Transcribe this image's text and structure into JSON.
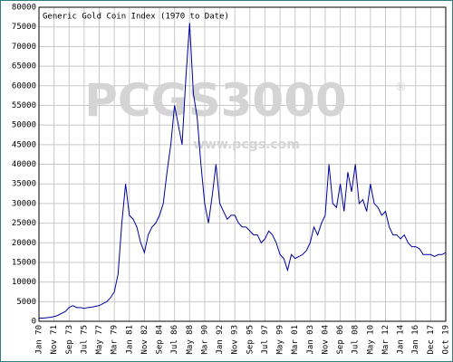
{
  "chart_data": {
    "type": "line",
    "title": "Generic Gold Coin Index (1970 to Date)",
    "watermark": "PCGS3000",
    "watermark_mark": "®",
    "watermark_url": "www.pcgs.com",
    "categories": [
      "Jan 70",
      null,
      null,
      null,
      "Nov 71",
      null,
      null,
      null,
      "Sep 73",
      null,
      null,
      null,
      "Jul 75",
      null,
      null,
      null,
      "May 77",
      null,
      null,
      null,
      "Mar 79",
      null,
      null,
      null,
      "Jan 81",
      null,
      null,
      null,
      "Nov 82",
      null,
      null,
      null,
      "Sep 84",
      null,
      null,
      null,
      "Jul 86",
      null,
      null,
      null,
      "May 88",
      null,
      null,
      null,
      "Mar 90",
      null,
      null,
      null,
      "Jan 92",
      null,
      null,
      null,
      "Nov 93",
      null,
      null,
      null,
      "Sep 95",
      null,
      null,
      null,
      "Jul 97",
      null,
      null,
      null,
      "May 99",
      null,
      null,
      null,
      "Mar 01",
      null,
      null,
      null,
      "Jan 03",
      null,
      null,
      null,
      "Nov 04",
      null,
      null,
      null,
      "Sep 06",
      null,
      null,
      null,
      "Jul 08",
      null,
      null,
      null,
      "May 10",
      null,
      null,
      null,
      "Mar 12",
      null,
      null,
      null,
      "Jan 14",
      null,
      null,
      null,
      "Jan 16",
      null,
      null,
      null,
      "Dec 17",
      null,
      null,
      null,
      "Oct 19"
    ],
    "series": [
      {
        "color": "#0000a0",
        "values": [
          800,
          800,
          900,
          1000,
          1200,
          1500,
          2000,
          2500,
          3500,
          4000,
          3500,
          3500,
          3300,
          3500,
          3600,
          3800,
          4000,
          4500,
          5000,
          6000,
          7500,
          12000,
          25000,
          35000,
          27000,
          26000,
          24000,
          20000,
          17500,
          22000,
          24000,
          25000,
          27000,
          30000,
          38000,
          45000,
          55000,
          50000,
          45000,
          62000,
          76000,
          58000,
          52000,
          40000,
          30000,
          25000,
          32000,
          40000,
          30000,
          28000,
          26000,
          27000,
          27000,
          25000,
          24000,
          24000,
          23000,
          22000,
          22000,
          20000,
          21000,
          23000,
          22000,
          20000,
          17000,
          16000,
          13000,
          17000,
          16000,
          16500,
          17000,
          18000,
          20000,
          24000,
          22000,
          25000,
          27000,
          40000,
          30000,
          29000,
          35000,
          28000,
          38000,
          33000,
          40000,
          30000,
          31000,
          28000,
          35000,
          30000,
          29000,
          27000,
          28000,
          24000,
          22000,
          22000,
          21000,
          22000,
          20000,
          19000,
          19000,
          18500,
          17000,
          17000,
          17000,
          16500,
          17000,
          17000,
          17500
        ]
      }
    ],
    "ylim": [
      0,
      80000
    ],
    "yticks": [
      0,
      5000,
      10000,
      15000,
      20000,
      25000,
      30000,
      35000,
      40000,
      45000,
      50000,
      55000,
      60000,
      65000,
      70000,
      75000,
      80000
    ],
    "grid": true,
    "frame_color": "#2f7f7f"
  }
}
